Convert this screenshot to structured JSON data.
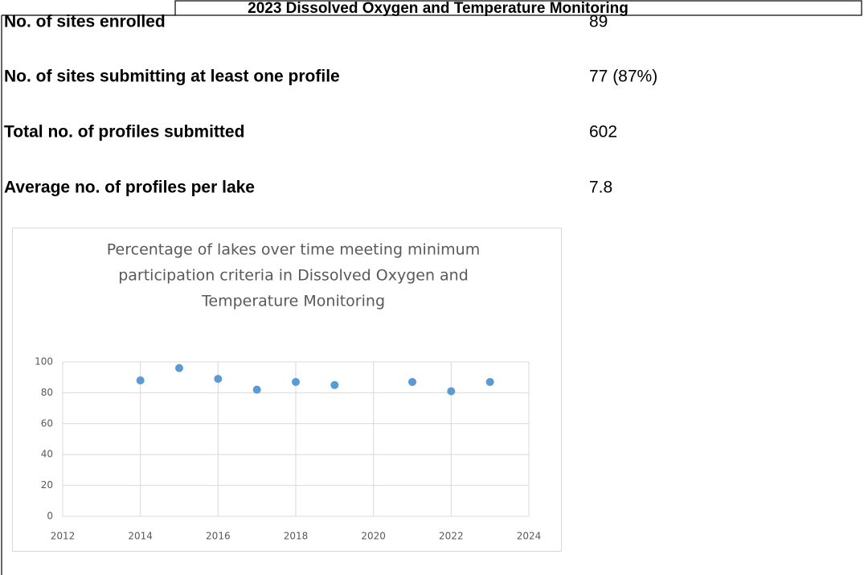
{
  "table": {
    "title": "2023 Dissolved Oxygen and Temperature Monitoring",
    "rows": [
      [
        "No. of sites enrolled",
        "89"
      ],
      [
        "No. of sites submitting at least one profile",
        "77 (87%)"
      ],
      [
        "Total no. of profiles submitted",
        "602"
      ],
      [
        "Average no. of profiles per lake",
        "7.8"
      ]
    ]
  },
  "chart_data": {
    "type": "scatter",
    "title": [
      "Percentage of lakes over time meeting minimum",
      "participation criteria in Dissolved Oxygen and",
      "Temperature Monitoring"
    ],
    "x": [
      2014,
      2015,
      2016,
      2017,
      2018,
      2019,
      2021,
      2022,
      2023
    ],
    "values": [
      88,
      96,
      89,
      82,
      87,
      85,
      87,
      81,
      87
    ],
    "color": "#5b9bd5",
    "xlim": [
      2012,
      2024
    ],
    "xticks": [
      2012,
      2014,
      2016,
      2018,
      2020,
      2022,
      2024
    ],
    "ylim": [
      0,
      100
    ],
    "yticks": [
      0,
      20,
      40,
      60,
      80,
      100
    ],
    "grid": true
  }
}
